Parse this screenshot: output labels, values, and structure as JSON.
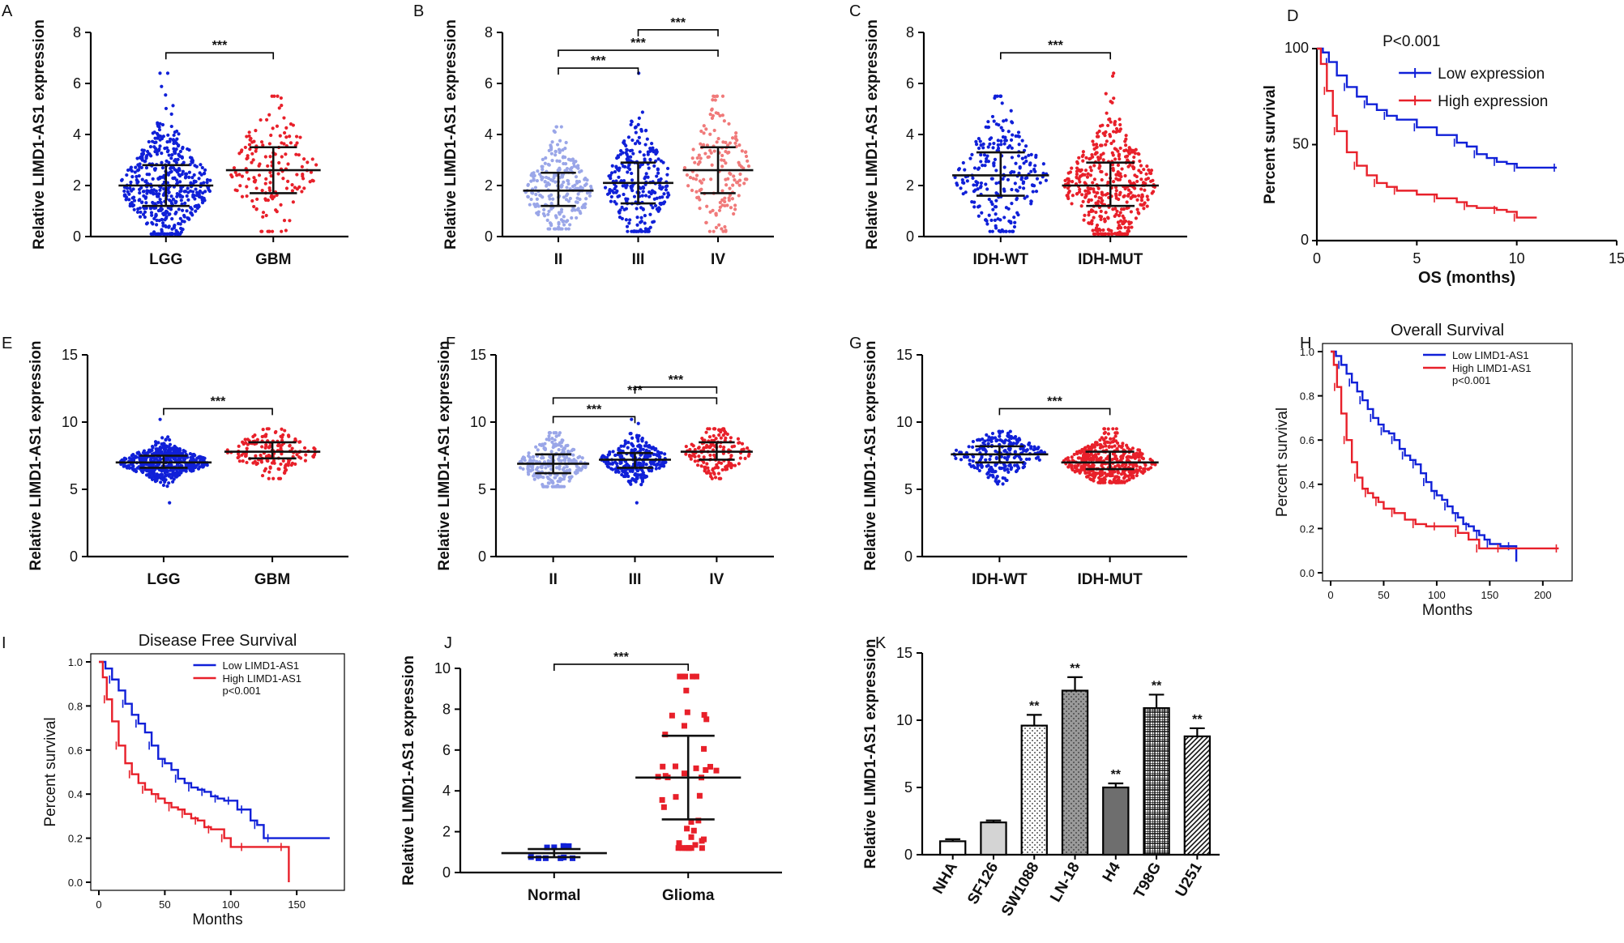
{
  "figure": {
    "description_free": true
  },
  "colors": {
    "blue": "#1020d8",
    "red": "#e8202a",
    "lightblue": "#9aa6e8",
    "pink": "#f07a7a",
    "black": "#000000"
  },
  "chart_data": [
    {
      "id": "A",
      "type": "scatter",
      "letter": "A",
      "ylabel": "Relative  LIMD1-AS1  expression",
      "xlabel": "",
      "ylim": [
        0,
        8
      ],
      "yticks": [
        0,
        2,
        4,
        6,
        8
      ],
      "categories": [
        "LGG",
        "GBM"
      ],
      "series": [
        {
          "name": "LGG",
          "color": "#1020d8",
          "median": 2.0,
          "q1": 1.2,
          "q3": 2.8,
          "min": 0.1,
          "max": 6.4,
          "n": 520
        },
        {
          "name": "GBM",
          "color": "#e8202a",
          "median": 2.6,
          "q1": 1.7,
          "q3": 3.5,
          "min": 0.2,
          "max": 5.5,
          "n": 160
        }
      ],
      "brackets": [
        {
          "from": 0,
          "to": 1,
          "y": 7.2,
          "label": "***"
        }
      ]
    },
    {
      "id": "B",
      "type": "scatter",
      "letter": "B",
      "ylabel": "Relative  LIMD1-AS1  expression",
      "xlabel": "",
      "ylim": [
        0,
        8
      ],
      "yticks": [
        0,
        2,
        4,
        6,
        8
      ],
      "categories": [
        "II",
        "III",
        "IV"
      ],
      "series": [
        {
          "name": "II",
          "color": "#9aa6e8",
          "median": 1.8,
          "q1": 1.2,
          "q3": 2.5,
          "min": 0.3,
          "max": 4.3,
          "n": 250
        },
        {
          "name": "III",
          "color": "#1020d8",
          "median": 2.1,
          "q1": 1.3,
          "q3": 2.9,
          "min": 0.2,
          "max": 6.4,
          "n": 270
        },
        {
          "name": "IV",
          "color": "#f07a7a",
          "median": 2.6,
          "q1": 1.7,
          "q3": 3.5,
          "min": 0.2,
          "max": 5.5,
          "n": 160
        }
      ],
      "brackets": [
        {
          "from": 1,
          "to": 2,
          "y": 8.1,
          "label": "***"
        },
        {
          "from": 0,
          "to": 2,
          "y": 7.3,
          "label": "***"
        },
        {
          "from": 0,
          "to": 1,
          "y": 6.6,
          "label": "***"
        }
      ]
    },
    {
      "id": "C",
      "type": "scatter",
      "letter": "C",
      "ylabel": "Relative  LIMD1-AS1  expression",
      "xlabel": "",
      "ylim": [
        0,
        8
      ],
      "yticks": [
        0,
        2,
        4,
        6,
        8
      ],
      "categories": [
        "IDH-WT",
        "IDH-MUT"
      ],
      "series": [
        {
          "name": "IDH-WT",
          "color": "#1020d8",
          "median": 2.4,
          "q1": 1.6,
          "q3": 3.3,
          "min": 0.2,
          "max": 5.5,
          "n": 240
        },
        {
          "name": "IDH-MUT",
          "color": "#e8202a",
          "median": 2.0,
          "q1": 1.2,
          "q3": 2.9,
          "min": 0.1,
          "max": 6.4,
          "n": 440
        }
      ],
      "brackets": [
        {
          "from": 0,
          "to": 1,
          "y": 7.2,
          "label": "***"
        }
      ]
    },
    {
      "id": "D",
      "type": "line",
      "letter": "D",
      "xlabel": "OS (months)",
      "ylabel": "Percent survival",
      "xlim": [
        0,
        15
      ],
      "ylim": [
        0,
        100
      ],
      "xticks": [
        0,
        5,
        10,
        15
      ],
      "yticks": [
        0,
        50,
        100
      ],
      "annotation": "P<0.001",
      "series": [
        {
          "name": "Low expression",
          "color": "#1020d8",
          "x": [
            0,
            0.3,
            0.6,
            1,
            1.5,
            2,
            2.5,
            3,
            3.5,
            4,
            5,
            6,
            7,
            7.5,
            8,
            8.5,
            9,
            9.5,
            10,
            11,
            12
          ],
          "y": [
            100,
            98,
            93,
            86,
            80,
            75,
            71,
            68,
            65,
            63,
            59,
            55,
            51,
            49,
            45,
            43,
            41,
            40,
            38,
            38,
            38
          ]
        },
        {
          "name": "High expression",
          "color": "#e8202a",
          "x": [
            0,
            0.2,
            0.5,
            0.8,
            1,
            1.5,
            2,
            2.5,
            3,
            3.5,
            4,
            5,
            6,
            7,
            7.5,
            8,
            9,
            9.5,
            10,
            11
          ],
          "y": [
            100,
            92,
            78,
            65,
            57,
            46,
            39,
            34,
            30,
            28,
            26,
            24,
            22,
            20,
            18,
            17,
            16,
            15,
            12,
            12
          ]
        }
      ]
    },
    {
      "id": "E",
      "type": "scatter",
      "letter": "E",
      "ylabel": "Relative LIMD1-AS1 expression",
      "xlabel": "",
      "ylim": [
        0,
        15
      ],
      "yticks": [
        0,
        5,
        10,
        15
      ],
      "categories": [
        "LGG",
        "GBM"
      ],
      "series": [
        {
          "name": "LGG",
          "color": "#1020d8",
          "median": 7.0,
          "q1": 6.6,
          "q3": 7.5,
          "min": 4.0,
          "max": 10.2,
          "n": 510
        },
        {
          "name": "GBM",
          "color": "#e8202a",
          "median": 7.8,
          "q1": 7.3,
          "q3": 8.5,
          "min": 5.8,
          "max": 9.5,
          "n": 160
        }
      ],
      "brackets": [
        {
          "from": 0,
          "to": 1,
          "y": 11.0,
          "label": "***"
        }
      ]
    },
    {
      "id": "F",
      "type": "scatter",
      "letter": "F",
      "ylabel": "Relative LIMD1-AS1 expression",
      "xlabel": "",
      "ylim": [
        0,
        15
      ],
      "yticks": [
        0,
        5,
        10,
        15
      ],
      "categories": [
        "II",
        "III",
        "IV"
      ],
      "series": [
        {
          "name": "II",
          "color": "#9aa6e8",
          "median": 6.9,
          "q1": 6.2,
          "q3": 7.6,
          "min": 5.2,
          "max": 9.2,
          "n": 250
        },
        {
          "name": "III",
          "color": "#1020d8",
          "median": 7.2,
          "q1": 6.6,
          "q3": 7.7,
          "min": 4.0,
          "max": 10.2,
          "n": 260
        },
        {
          "name": "IV",
          "color": "#e8202a",
          "median": 7.8,
          "q1": 7.2,
          "q3": 8.5,
          "min": 5.8,
          "max": 9.5,
          "n": 160
        }
      ],
      "brackets": [
        {
          "from": 1,
          "to": 2,
          "y": 12.6,
          "label": "***"
        },
        {
          "from": 0,
          "to": 2,
          "y": 11.8,
          "label": "***"
        },
        {
          "from": 0,
          "to": 1,
          "y": 10.4,
          "label": "***"
        }
      ]
    },
    {
      "id": "G",
      "type": "scatter",
      "letter": "G",
      "ylabel": "Relative LIMD1-AS1 expression",
      "xlabel": "",
      "ylim": [
        0,
        15
      ],
      "yticks": [
        0,
        5,
        10,
        15
      ],
      "categories": [
        "IDH-WT",
        "IDH-MUT"
      ],
      "series": [
        {
          "name": "IDH-WT",
          "color": "#1020d8",
          "median": 7.6,
          "q1": 7.0,
          "q3": 8.2,
          "min": 5.4,
          "max": 9.3,
          "n": 230
        },
        {
          "name": "IDH-MUT",
          "color": "#e8202a",
          "median": 7.0,
          "q1": 6.5,
          "q3": 7.8,
          "min": 5.5,
          "max": 9.5,
          "n": 430
        }
      ],
      "brackets": [
        {
          "from": 0,
          "to": 1,
          "y": 11.0,
          "label": "***"
        }
      ]
    },
    {
      "id": "H",
      "type": "line",
      "letter": "H",
      "title": "Overall Survival",
      "xlabel": "Months",
      "ylabel": "Percent survival",
      "xlim": [
        0,
        220
      ],
      "ylim": [
        0,
        1.0
      ],
      "xticks": [
        0,
        50,
        100,
        150,
        200
      ],
      "yticks": [
        0.0,
        0.2,
        0.4,
        0.6,
        0.8,
        1.0
      ],
      "annotation": "p<0.001",
      "series": [
        {
          "name": "Low LIMD1-AS1",
          "color": "#1020d8",
          "x": [
            0,
            5,
            10,
            15,
            20,
            25,
            30,
            35,
            40,
            45,
            50,
            55,
            60,
            65,
            70,
            75,
            80,
            85,
            90,
            95,
            100,
            105,
            110,
            115,
            120,
            125,
            130,
            135,
            140,
            145,
            150,
            160,
            170,
            175
          ],
          "y": [
            1.0,
            0.98,
            0.94,
            0.9,
            0.86,
            0.82,
            0.78,
            0.74,
            0.7,
            0.67,
            0.64,
            0.63,
            0.6,
            0.56,
            0.53,
            0.51,
            0.49,
            0.45,
            0.41,
            0.37,
            0.35,
            0.33,
            0.3,
            0.27,
            0.25,
            0.22,
            0.21,
            0.19,
            0.17,
            0.15,
            0.13,
            0.12,
            0.12,
            0.05
          ]
        },
        {
          "name": "High LIMD1-AS1",
          "color": "#e8202a",
          "x": [
            0,
            3,
            6,
            10,
            15,
            20,
            25,
            30,
            35,
            40,
            45,
            50,
            60,
            70,
            80,
            90,
            100,
            110,
            120,
            130,
            140,
            150,
            160,
            180,
            215
          ],
          "y": [
            1.0,
            0.94,
            0.84,
            0.72,
            0.6,
            0.5,
            0.43,
            0.38,
            0.36,
            0.34,
            0.32,
            0.29,
            0.27,
            0.24,
            0.22,
            0.21,
            0.21,
            0.21,
            0.18,
            0.15,
            0.11,
            0.11,
            0.11,
            0.11,
            0.11
          ]
        }
      ]
    },
    {
      "id": "I",
      "type": "line",
      "letter": "I",
      "title": "Disease Free Survival",
      "xlabel": "Months",
      "ylabel": "Percent survival",
      "xlim": [
        0,
        180
      ],
      "ylim": [
        0,
        1.0
      ],
      "xticks": [
        0,
        50,
        100,
        150
      ],
      "yticks": [
        0.0,
        0.2,
        0.4,
        0.6,
        0.8,
        1.0
      ],
      "annotation": "p<0.001",
      "series": [
        {
          "name": "Low LIMD1-AS1",
          "color": "#1020d8",
          "x": [
            0,
            5,
            10,
            15,
            20,
            25,
            30,
            35,
            40,
            45,
            50,
            55,
            60,
            65,
            70,
            75,
            80,
            85,
            90,
            95,
            100,
            105,
            110,
            115,
            120,
            125,
            130,
            175
          ],
          "y": [
            1.0,
            0.97,
            0.92,
            0.87,
            0.81,
            0.76,
            0.72,
            0.68,
            0.62,
            0.56,
            0.54,
            0.51,
            0.47,
            0.45,
            0.43,
            0.42,
            0.41,
            0.39,
            0.38,
            0.37,
            0.37,
            0.33,
            0.33,
            0.28,
            0.26,
            0.2,
            0.2,
            0.2
          ]
        },
        {
          "name": "High LIMD1-AS1",
          "color": "#e8202a",
          "x": [
            0,
            3,
            6,
            10,
            15,
            20,
            25,
            30,
            35,
            40,
            45,
            50,
            55,
            60,
            65,
            70,
            75,
            80,
            85,
            90,
            95,
            100,
            110,
            120,
            140,
            144
          ],
          "y": [
            1.0,
            0.93,
            0.83,
            0.73,
            0.62,
            0.54,
            0.49,
            0.45,
            0.42,
            0.4,
            0.38,
            0.36,
            0.34,
            0.33,
            0.31,
            0.29,
            0.28,
            0.25,
            0.24,
            0.24,
            0.2,
            0.16,
            0.16,
            0.16,
            0.16,
            0.0
          ]
        }
      ]
    },
    {
      "id": "J",
      "type": "scatter",
      "letter": "J",
      "ylabel": "Relative LIMD1-AS1 expression",
      "xlabel": "",
      "ylim": [
        0,
        10
      ],
      "yticks": [
        0,
        2,
        4,
        6,
        8,
        10
      ],
      "categories": [
        "Normal",
        "Glioma"
      ],
      "series": [
        {
          "name": "Normal",
          "color": "#1020d8",
          "median": 0.95,
          "q1": 0.75,
          "q3": 1.15,
          "min": 0.7,
          "max": 1.3,
          "n": 10
        },
        {
          "name": "Glioma",
          "color": "#e8202a",
          "median": 4.65,
          "q1": 2.6,
          "q3": 6.7,
          "min": 1.2,
          "max": 9.6,
          "n": 45
        }
      ],
      "brackets": [
        {
          "from": 0,
          "to": 1,
          "y": 10.2,
          "label": "***"
        }
      ]
    },
    {
      "id": "K",
      "type": "bar",
      "letter": "K",
      "ylabel": "Relative LIMD1-AS1 expression",
      "xlabel": "",
      "ylim": [
        0,
        15
      ],
      "yticks": [
        0,
        5,
        10,
        15
      ],
      "categories": [
        "NHA",
        "SF126",
        "SW1088",
        "LN-18",
        "H4",
        "T98G",
        "U251"
      ],
      "values": [
        1.0,
        2.4,
        9.6,
        12.2,
        5.0,
        10.9,
        8.8
      ],
      "errors": [
        0.15,
        0.15,
        0.8,
        1.0,
        0.3,
        1.0,
        0.6
      ],
      "significance": [
        "",
        "",
        "**",
        "**",
        "**",
        "**",
        "**"
      ]
    }
  ]
}
